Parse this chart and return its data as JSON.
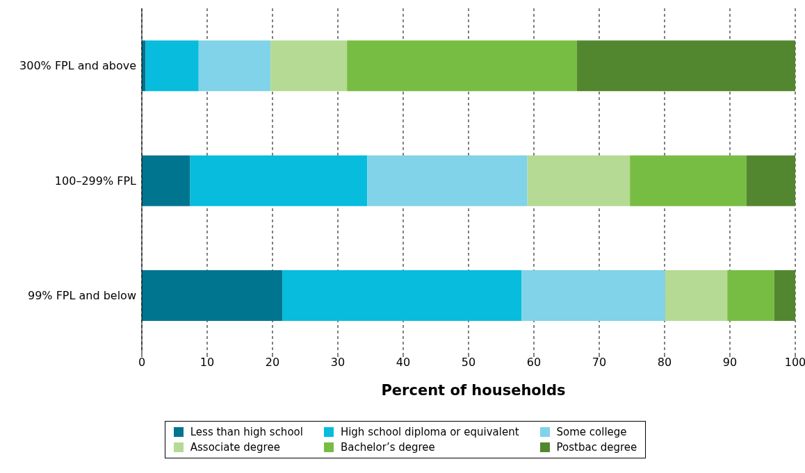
{
  "chart_data": {
    "type": "bar",
    "orientation": "horizontal",
    "stacked": true,
    "xlabel": "Percent of households",
    "categories": [
      "300% FPL and above",
      "100–299% FPL",
      "99% FPL and below"
    ],
    "series": [
      {
        "name": "Less than high school",
        "color": "#00758f",
        "values": [
          0.6,
          7.4,
          21.5
        ]
      },
      {
        "name": "High school diploma or equivalent",
        "color": "#07bcdc",
        "values": [
          8.1,
          27.1,
          36.6
        ]
      },
      {
        "name": "Some college",
        "color": "#80d3e8",
        "values": [
          11.0,
          24.5,
          22.0
        ]
      },
      {
        "name": "Associate degree",
        "color": "#b5da94",
        "values": [
          11.7,
          15.7,
          9.5
        ]
      },
      {
        "name": "Bachelor’s degree",
        "color": "#77bd43",
        "values": [
          35.2,
          17.8,
          7.2
        ]
      },
      {
        "name": "Postbac degree",
        "color": "#53872f",
        "values": [
          33.4,
          7.5,
          3.2
        ]
      }
    ],
    "xlim": [
      0,
      100
    ],
    "xticks": [
      0,
      10,
      20,
      30,
      40,
      50,
      60,
      70,
      80,
      90,
      100
    ],
    "grid": "x",
    "legend": "bottom"
  }
}
